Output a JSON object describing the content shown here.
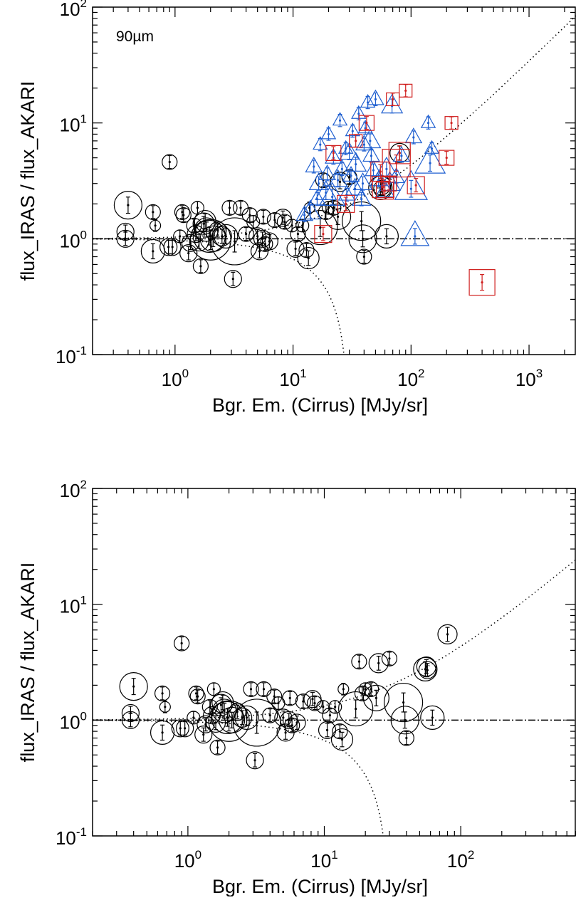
{
  "chart_data": [
    {
      "type": "scatter",
      "annotation": "90µm",
      "xlabel": "Bgr. Em. (Cirrus) [MJy/sr]",
      "ylabel": "flux_IRAS / flux_AKARI",
      "xscale": "log",
      "yscale": "log",
      "xlim": [
        0.2,
        2500
      ],
      "ylim": [
        0.1,
        100
      ],
      "x_ticks": [
        {
          "v": 1,
          "label": "10",
          "exp": "0"
        },
        {
          "v": 10,
          "label": "10",
          "exp": "1"
        },
        {
          "v": 100,
          "label": "10",
          "exp": "2"
        },
        {
          "v": 1000,
          "label": "10",
          "exp": "3"
        }
      ],
      "y_ticks": [
        {
          "v": 0.1,
          "label": "10",
          "exp": "-1"
        },
        {
          "v": 1,
          "label": "10",
          "exp": "0"
        },
        {
          "v": 10,
          "label": "10",
          "exp": "1"
        },
        {
          "v": 100,
          "label": "10",
          "exp": "2"
        }
      ],
      "reference_line": {
        "y": 1,
        "style": "dash-dot"
      },
      "envelope_curves": "dotted, ratio = 1 ± x/30",
      "series": [
        {
          "marker": "circle",
          "color": "#000000",
          "points": [
            [
              0.38,
              1.0,
              0.6
            ],
            [
              0.38,
              1.15,
              0.6
            ],
            [
              0.4,
              1.95,
              1.1
            ],
            [
              0.65,
              0.78,
              0.9
            ],
            [
              0.65,
              1.7,
              0.5
            ],
            [
              0.68,
              1.3,
              0.3
            ],
            [
              0.9,
              4.6,
              0.5
            ],
            [
              0.88,
              0.85,
              0.6
            ],
            [
              0.95,
              0.85,
              0.6
            ],
            [
              1.1,
              1.05,
              0.4
            ],
            [
              1.15,
              1.7,
              0.5
            ],
            [
              1.18,
              1.6,
              0.5
            ],
            [
              1.3,
              0.75,
              0.6
            ],
            [
              1.35,
              0.92,
              0.6
            ],
            [
              1.45,
              1.3,
              0.5
            ],
            [
              1.5,
              1.1,
              0.6
            ],
            [
              1.55,
              1.85,
              0.4
            ],
            [
              1.6,
              0.95,
              0.7
            ],
            [
              1.65,
              0.58,
              0.5
            ],
            [
              1.75,
              1.35,
              0.8
            ],
            [
              1.8,
              1.42,
              0.8
            ],
            [
              1.85,
              1.2,
              0.9
            ],
            [
              1.95,
              1.05,
              1.3
            ],
            [
              2.0,
              0.98,
              1.7
            ],
            [
              2.1,
              1.0,
              1.0
            ],
            [
              2.3,
              1.18,
              0.6
            ],
            [
              2.5,
              1.05,
              0.7
            ],
            [
              2.7,
              1.05,
              0.9
            ],
            [
              2.9,
              1.85,
              0.5
            ],
            [
              3.1,
              0.45,
              0.6
            ],
            [
              3.2,
              0.95,
              2.0
            ],
            [
              3.6,
              1.85,
              0.5
            ],
            [
              4.0,
              1.1,
              0.5
            ],
            [
              4.3,
              1.6,
              0.5
            ],
            [
              4.6,
              1.4,
              0.4
            ],
            [
              5.0,
              1.05,
              0.6
            ],
            [
              5.2,
              0.78,
              0.6
            ],
            [
              5.5,
              1.0,
              0.6
            ],
            [
              5.6,
              1.55,
              0.5
            ],
            [
              5.8,
              0.9,
              0.5
            ],
            [
              6.3,
              0.95,
              0.6
            ],
            [
              7.0,
              1.45,
              0.5
            ],
            [
              8.2,
              1.52,
              0.6
            ],
            [
              8.5,
              1.4,
              0.5
            ],
            [
              9.8,
              1.3,
              0.4
            ],
            [
              10.5,
              0.82,
              0.6
            ],
            [
              11.0,
              1.1,
              0.5
            ],
            [
              12.0,
              1.3,
              0.4
            ],
            [
              13.0,
              0.8,
              0.5
            ],
            [
              13.5,
              0.68,
              0.8
            ],
            [
              13.8,
              1.85,
              0.3
            ],
            [
              17.0,
              1.25,
              1.4
            ],
            [
              18.0,
              3.2,
              0.5
            ],
            [
              19.0,
              1.7,
              0.5
            ],
            [
              20.0,
              1.85,
              0.4
            ],
            [
              22.0,
              1.85,
              0.5
            ],
            [
              24.0,
              1.55,
              1.0
            ],
            [
              25.0,
              3.1,
              0.7
            ],
            [
              30.0,
              3.4,
              0.5
            ],
            [
              38.0,
              1.42,
              1.6
            ],
            [
              39.0,
              1.0,
              1.1
            ],
            [
              40.0,
              0.7,
              0.5
            ],
            [
              55.0,
              2.75,
              0.9
            ],
            [
              56.0,
              2.9,
              0.7
            ],
            [
              57.0,
              2.7,
              0.6
            ],
            [
              62.0,
              1.05,
              0.9
            ],
            [
              80.0,
              5.5,
              0.7
            ]
          ]
        },
        {
          "marker": "triangle",
          "color": "#1f5fd0",
          "points": [
            [
              12.5,
              1.6,
              0.5
            ],
            [
              14.0,
              1.7,
              0.7
            ],
            [
              15.0,
              4.2,
              0.5
            ],
            [
              16.0,
              2.2,
              0.5
            ],
            [
              16.5,
              3.0,
              0.6
            ],
            [
              17.0,
              6.5,
              0.4
            ],
            [
              19.0,
              2.5,
              0.7
            ],
            [
              19.5,
              3.6,
              0.5
            ],
            [
              20.0,
              8.0,
              0.4
            ],
            [
              21.5,
              2.3,
              0.9
            ],
            [
              22.0,
              5.0,
              0.5
            ],
            [
              24.0,
              3.2,
              0.6
            ],
            [
              25.0,
              10.5,
              0.4
            ],
            [
              26.0,
              4.0,
              0.5
            ],
            [
              28.0,
              6.0,
              0.4
            ],
            [
              28.5,
              2.4,
              0.5
            ],
            [
              30.0,
              5.5,
              0.6
            ],
            [
              31.0,
              3.5,
              0.5
            ],
            [
              32.0,
              8.5,
              0.4
            ],
            [
              33.5,
              2.7,
              0.6
            ],
            [
              34.0,
              4.4,
              0.7
            ],
            [
              36.0,
              12.0,
              0.4
            ],
            [
              38.0,
              2.2,
              0.6
            ],
            [
              39.0,
              3.0,
              0.6
            ],
            [
              40.0,
              6.5,
              0.5
            ],
            [
              41.0,
              9.0,
              0.4
            ],
            [
              43.0,
              15.0,
              0.4
            ],
            [
              45.0,
              7.0,
              0.7
            ],
            [
              46.0,
              5.2,
              0.5
            ],
            [
              48.0,
              3.9,
              0.5
            ],
            [
              50.0,
              16.0,
              0.5
            ],
            [
              53.0,
              3.2,
              0.5
            ],
            [
              60.0,
              2.6,
              0.6
            ],
            [
              62.0,
              4.0,
              0.7
            ],
            [
              66.0,
              3.0,
              0.7
            ],
            [
              69.0,
              14.0,
              0.7
            ],
            [
              75.0,
              3.4,
              0.5
            ],
            [
              83.0,
              5.2,
              0.5
            ],
            [
              100.0,
              2.7,
              1.2
            ],
            [
              105.0,
              7.5,
              0.5
            ],
            [
              108.0,
              1.05,
              1.0
            ],
            [
              140.0,
              10.0,
              0.4
            ],
            [
              145.0,
              4.5,
              1.1
            ],
            [
              150.0,
              6.0,
              0.4
            ]
          ]
        },
        {
          "marker": "square",
          "color": "#d0201f",
          "points": [
            [
              18.0,
              1.1,
              0.6
            ],
            [
              22.0,
              5.5,
              0.5
            ],
            [
              28.0,
              2.0,
              0.6
            ],
            [
              34.0,
              7.0,
              0.4
            ],
            [
              42.0,
              10.0,
              0.5
            ],
            [
              55.0,
              3.8,
              0.7
            ],
            [
              58.0,
              2.8,
              0.8
            ],
            [
              60.0,
              2.6,
              0.6
            ],
            [
              65.0,
              3.0,
              0.5
            ],
            [
              70.0,
              16.0,
              0.4
            ],
            [
              75.0,
              4.5,
              1.1
            ],
            [
              80.0,
              5.5,
              0.8
            ],
            [
              90.0,
              19.0,
              0.4
            ],
            [
              110.0,
              2.9,
              0.6
            ],
            [
              200.0,
              5.0,
              0.5
            ],
            [
              220.0,
              10.0,
              0.4
            ],
            [
              400.0,
              0.42,
              1.0
            ]
          ]
        }
      ]
    },
    {
      "type": "scatter",
      "annotation": "",
      "xlabel": "Bgr. Em. (Cirrus) [MJy/sr]",
      "ylabel": "flux_IRAS / flux_AKARI",
      "xscale": "log",
      "yscale": "log",
      "xlim": [
        0.2,
        700
      ],
      "ylim": [
        0.1,
        100
      ],
      "x_ticks": [
        {
          "v": 1,
          "label": "10",
          "exp": "0"
        },
        {
          "v": 10,
          "label": "10",
          "exp": "1"
        },
        {
          "v": 100,
          "label": "10",
          "exp": "2"
        }
      ],
      "y_ticks": [
        {
          "v": 0.1,
          "label": "10",
          "exp": "-1"
        },
        {
          "v": 1,
          "label": "10",
          "exp": "0"
        },
        {
          "v": 10,
          "label": "10",
          "exp": "1"
        },
        {
          "v": 100,
          "label": "10",
          "exp": "2"
        }
      ],
      "reference_line": {
        "y": 1,
        "style": "dash-dot"
      },
      "envelope_curves": "dotted, ratio = 1 ± x/30",
      "series": [
        {
          "marker": "circle",
          "color": "#000000",
          "points": [
            [
              0.38,
              1.0,
              0.6
            ],
            [
              0.38,
              1.15,
              0.6
            ],
            [
              0.4,
              1.95,
              1.1
            ],
            [
              0.65,
              0.78,
              0.9
            ],
            [
              0.65,
              1.7,
              0.5
            ],
            [
              0.68,
              1.3,
              0.3
            ],
            [
              0.9,
              4.6,
              0.5
            ],
            [
              0.88,
              0.85,
              0.6
            ],
            [
              0.95,
              0.85,
              0.6
            ],
            [
              1.1,
              1.05,
              0.4
            ],
            [
              1.15,
              1.7,
              0.5
            ],
            [
              1.18,
              1.6,
              0.5
            ],
            [
              1.3,
              0.75,
              0.6
            ],
            [
              1.35,
              0.92,
              0.6
            ],
            [
              1.45,
              1.3,
              0.5
            ],
            [
              1.5,
              1.1,
              0.6
            ],
            [
              1.55,
              1.85,
              0.4
            ],
            [
              1.6,
              0.95,
              0.7
            ],
            [
              1.65,
              0.58,
              0.5
            ],
            [
              1.75,
              1.35,
              0.8
            ],
            [
              1.8,
              1.42,
              0.8
            ],
            [
              1.85,
              1.2,
              0.9
            ],
            [
              1.95,
              1.05,
              1.3
            ],
            [
              2.0,
              0.98,
              1.7
            ],
            [
              2.1,
              1.0,
              1.0
            ],
            [
              2.3,
              1.18,
              0.6
            ],
            [
              2.5,
              1.05,
              0.7
            ],
            [
              2.7,
              1.05,
              0.9
            ],
            [
              2.9,
              1.85,
              0.5
            ],
            [
              3.1,
              0.45,
              0.6
            ],
            [
              3.2,
              0.95,
              2.0
            ],
            [
              3.6,
              1.85,
              0.5
            ],
            [
              4.0,
              1.1,
              0.5
            ],
            [
              4.3,
              1.6,
              0.5
            ],
            [
              4.6,
              1.4,
              0.4
            ],
            [
              5.0,
              1.05,
              0.6
            ],
            [
              5.2,
              0.78,
              0.6
            ],
            [
              5.5,
              1.0,
              0.6
            ],
            [
              5.6,
              1.55,
              0.5
            ],
            [
              5.8,
              0.9,
              0.5
            ],
            [
              6.3,
              0.95,
              0.6
            ],
            [
              7.0,
              1.45,
              0.5
            ],
            [
              8.2,
              1.52,
              0.6
            ],
            [
              8.5,
              1.4,
              0.5
            ],
            [
              9.8,
              1.3,
              0.4
            ],
            [
              10.5,
              0.82,
              0.6
            ],
            [
              11.0,
              1.1,
              0.5
            ],
            [
              12.0,
              1.3,
              0.4
            ],
            [
              13.0,
              0.8,
              0.5
            ],
            [
              13.5,
              0.68,
              0.8
            ],
            [
              13.8,
              1.85,
              0.3
            ],
            [
              17.0,
              1.25,
              1.4
            ],
            [
              18.0,
              3.2,
              0.5
            ],
            [
              19.0,
              1.7,
              0.5
            ],
            [
              20.0,
              1.85,
              0.4
            ],
            [
              22.0,
              1.85,
              0.5
            ],
            [
              24.0,
              1.55,
              1.0
            ],
            [
              25.0,
              3.1,
              0.7
            ],
            [
              30.0,
              3.4,
              0.5
            ],
            [
              38.0,
              1.42,
              1.6
            ],
            [
              39.0,
              1.0,
              1.1
            ],
            [
              40.0,
              0.7,
              0.5
            ],
            [
              55.0,
              2.75,
              0.9
            ],
            [
              56.0,
              2.9,
              0.7
            ],
            [
              57.0,
              2.7,
              0.6
            ],
            [
              62.0,
              1.05,
              0.9
            ],
            [
              80.0,
              5.5,
              0.7
            ]
          ]
        }
      ]
    }
  ]
}
